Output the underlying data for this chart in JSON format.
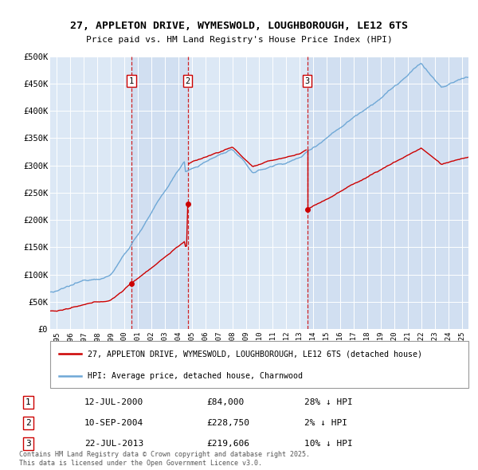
{
  "title_line1": "27, APPLETON DRIVE, WYMESWOLD, LOUGHBOROUGH, LE12 6TS",
  "title_line2": "Price paid vs. HM Land Registry's House Price Index (HPI)",
  "ylabel_ticks": [
    "£0",
    "£50K",
    "£100K",
    "£150K",
    "£200K",
    "£250K",
    "£300K",
    "£350K",
    "£400K",
    "£450K",
    "£500K"
  ],
  "ytick_values": [
    0,
    50000,
    100000,
    150000,
    200000,
    250000,
    300000,
    350000,
    400000,
    450000,
    500000
  ],
  "xlim": [
    1994.5,
    2025.5
  ],
  "ylim": [
    0,
    500000
  ],
  "plot_bg_color": "#dce8f5",
  "plot_bg_alt_color": "#c8d8ee",
  "grid_color": "#ffffff",
  "hpi_color": "#6fa8d6",
  "price_color": "#cc0000",
  "vline_color": "#cc0000",
  "legend_label1": "27, APPLETON DRIVE, WYMESWOLD, LOUGHBOROUGH, LE12 6TS (detached house)",
  "legend_label2": "HPI: Average price, detached house, Charnwood",
  "sale1_date": "12-JUL-2000",
  "sale1_price": "£84,000",
  "sale1_hpi": "28% ↓ HPI",
  "sale1_x": 2000.53,
  "sale1_y": 84000,
  "sale2_date": "10-SEP-2004",
  "sale2_price": "£228,750",
  "sale2_hpi": "2% ↓ HPI",
  "sale2_x": 2004.7,
  "sale2_y": 228750,
  "sale3_date": "22-JUL-2013",
  "sale3_price": "£219,606",
  "sale3_hpi": "10% ↓ HPI",
  "sale3_x": 2013.55,
  "sale3_y": 219606,
  "footnote": "Contains HM Land Registry data © Crown copyright and database right 2025.\nThis data is licensed under the Open Government Licence v3.0.",
  "xticks": [
    1995,
    1996,
    1997,
    1998,
    1999,
    2000,
    2001,
    2002,
    2003,
    2004,
    2005,
    2006,
    2007,
    2008,
    2009,
    2010,
    2011,
    2012,
    2013,
    2014,
    2015,
    2016,
    2017,
    2018,
    2019,
    2020,
    2021,
    2022,
    2023,
    2024,
    2025
  ]
}
